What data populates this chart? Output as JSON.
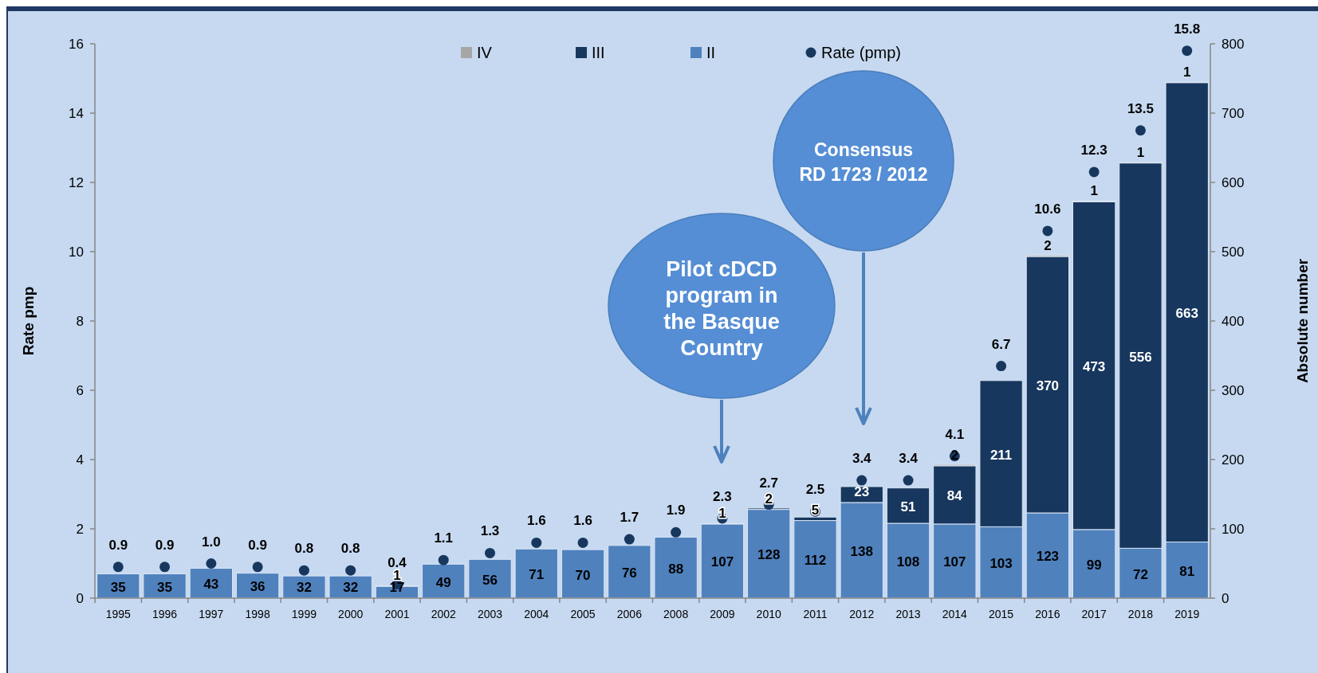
{
  "chart_data": {
    "type": "bar",
    "stacked": true,
    "ylabel": "Rate pmp",
    "y2label": "Absolute number",
    "categories": [
      "1995",
      "1996",
      "1997",
      "1998",
      "1999",
      "2000",
      "2001",
      "2002",
      "2003",
      "2004",
      "2005",
      "2006",
      "2008",
      "2009",
      "2010",
      "2011",
      "2012",
      "2013",
      "2014",
      "2015",
      "2016",
      "2017",
      "2018",
      "2019"
    ],
    "series": [
      {
        "name": "II",
        "axis": "y2",
        "color": "#4f81bd",
        "values": [
          35,
          35,
          43,
          36,
          32,
          32,
          17,
          49,
          56,
          71,
          70,
          76,
          88,
          107,
          128,
          112,
          138,
          108,
          107,
          103,
          123,
          99,
          72,
          81
        ]
      },
      {
        "name": "III",
        "axis": "y2",
        "color": "#17375e",
        "values": [
          null,
          null,
          null,
          null,
          null,
          null,
          1,
          null,
          null,
          null,
          null,
          null,
          null,
          1,
          2,
          5,
          23,
          51,
          84,
          211,
          370,
          473,
          556,
          663
        ]
      },
      {
        "name": "IV",
        "axis": "y2",
        "color": "#a6a6a6",
        "values": [
          null,
          null,
          null,
          null,
          null,
          null,
          null,
          null,
          null,
          null,
          null,
          null,
          null,
          null,
          null,
          null,
          null,
          null,
          2,
          null,
          2,
          1,
          1,
          1
        ]
      },
      {
        "name": "Rate (pmp)",
        "type": "scatter",
        "axis": "y",
        "marker": "circle",
        "color": "#17375e",
        "values": [
          0.9,
          0.9,
          1.0,
          0.9,
          0.8,
          0.8,
          0.4,
          1.1,
          1.3,
          1.6,
          1.6,
          1.7,
          1.9,
          2.3,
          2.7,
          2.5,
          3.4,
          3.4,
          4.1,
          6.7,
          10.6,
          12.3,
          13.5,
          15.8
        ],
        "value_labels": [
          "0.9",
          "0.9",
          "1.0",
          "0.9",
          "0.8",
          "0.8",
          "0.4",
          "1.1",
          "1.3",
          "1.6",
          "1.6",
          "1.7",
          "1.9",
          "2.3",
          "2.7",
          "2.5",
          "3.4",
          "3.4",
          "4.1",
          "6.7",
          "10.6",
          "12.3",
          "13.5",
          "15.8"
        ]
      }
    ],
    "ylim": [
      0,
      16
    ],
    "yticks": [
      0,
      2,
      4,
      6,
      8,
      10,
      12,
      14,
      16
    ],
    "y2lim": [
      0,
      800
    ],
    "y2ticks": [
      0,
      100,
      200,
      300,
      400,
      500,
      600,
      700,
      800
    ],
    "data_labels": true,
    "legend": "top",
    "grid": false,
    "annotations": [
      "Pilot cDCD program in the Basque Country",
      "Consensus RD 1723 / 2012"
    ]
  }
}
